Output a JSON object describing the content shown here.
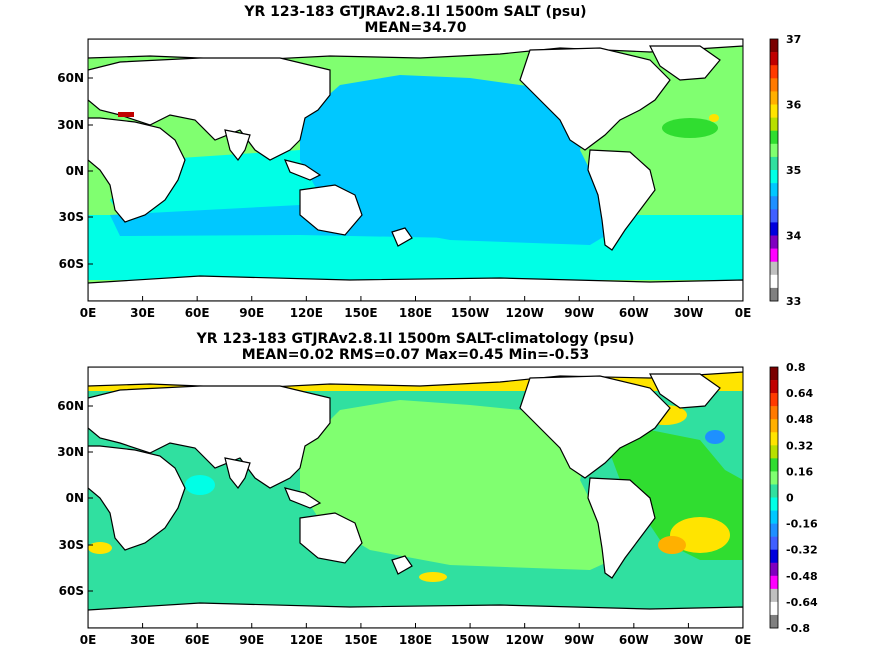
{
  "panels": [
    {
      "title": "YR 123-183 GTJRAv2.8.1l 1500m SALT (psu)",
      "subtitle": "MEAN=34.70",
      "x_ticks": [
        "0E",
        "30E",
        "60E",
        "90E",
        "120E",
        "150E",
        "180E",
        "150W",
        "120W",
        "90W",
        "60W",
        "30W",
        "0E"
      ],
      "y_ticks": [
        "60N",
        "30N",
        "0N",
        "30S",
        "60S"
      ],
      "colorbar": {
        "labels": [
          "37",
          "36",
          "35",
          "34",
          "33"
        ],
        "colors": [
          "#7a0000",
          "#c00000",
          "#ff3a00",
          "#ff7a00",
          "#ffb000",
          "#ffe400",
          "#b8e000",
          "#30dd30",
          "#80ff70",
          "#30e0a0",
          "#00ffe6",
          "#00c8ff",
          "#1e90ff",
          "#4060ff",
          "#0000dd",
          "#8000c0",
          "#ff00ff",
          "#c0c0c0",
          "#ffffff",
          "#808080"
        ]
      }
    },
    {
      "title": "YR 123-183 GTJRAv2.8.1l 1500m SALT-climatology (psu)",
      "subtitle": "MEAN=0.02   RMS=0.07   Max=0.45   Min=-0.53",
      "x_ticks": [
        "0E",
        "30E",
        "60E",
        "90E",
        "120E",
        "150E",
        "180E",
        "150W",
        "120W",
        "90W",
        "60W",
        "30W",
        "0E"
      ],
      "y_ticks": [
        "60N",
        "30N",
        "0N",
        "30S",
        "60S"
      ],
      "colorbar": {
        "labels": [
          "0.8",
          "0.64",
          "0.48",
          "0.32",
          "0.16",
          "0",
          "-0.16",
          "-0.32",
          "-0.48",
          "-0.64",
          "-0.8"
        ],
        "colors": [
          "#7a0000",
          "#c00000",
          "#ff3a00",
          "#ff7a00",
          "#ffb000",
          "#ffe400",
          "#b8e000",
          "#30dd30",
          "#80ff70",
          "#30e0a0",
          "#00ffe6",
          "#00c8ff",
          "#1e90ff",
          "#4060ff",
          "#0000dd",
          "#8000c0",
          "#ff00ff",
          "#c0c0c0",
          "#ffffff",
          "#808080"
        ]
      }
    }
  ],
  "colors": {
    "land": "#ffffff",
    "salt_pacific": "#00c8ff",
    "salt_indian": "#00ffe6",
    "salt_atlantic": "#80ff70",
    "salt_mediterranean": "#c00000",
    "anom_base": "#30e0a0",
    "anom_positive": "#80ff70",
    "anom_arctic": "#ffe400",
    "anom_hot": "#ffb000"
  }
}
